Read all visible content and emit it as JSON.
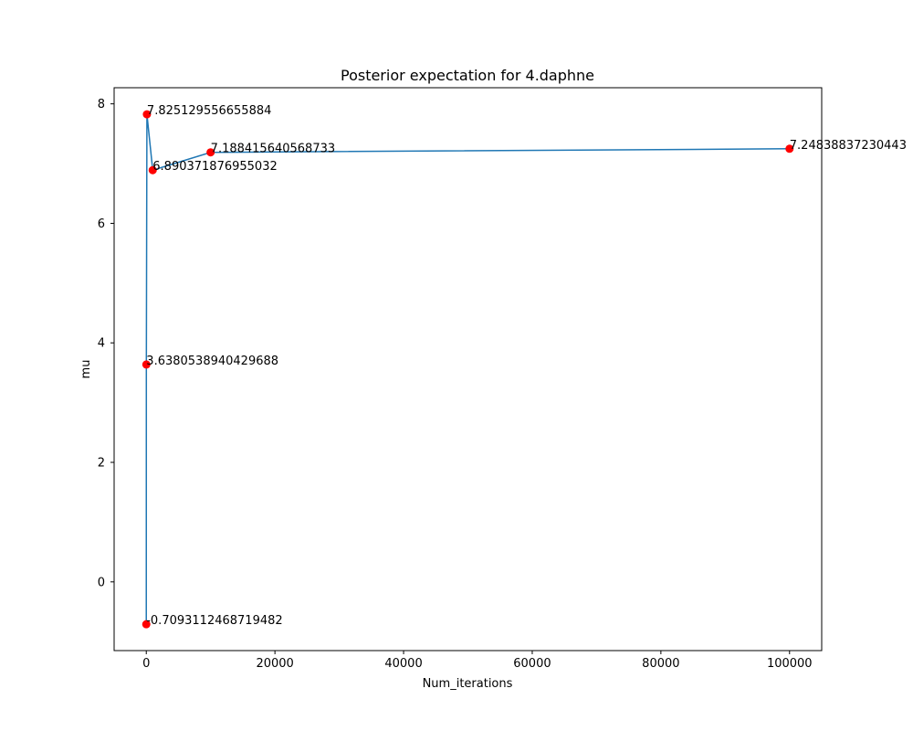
{
  "chart_data": {
    "type": "line",
    "title": "Posterior expectation for 4.daphne",
    "xlabel": "Num_iterations",
    "ylabel": "mu",
    "xlim": [
      -5000,
      105000
    ],
    "ylim": [
      -1.15,
      8.27
    ],
    "xticks": [
      0,
      20000,
      40000,
      60000,
      80000,
      100000
    ],
    "yticks": [
      0,
      2,
      4,
      6,
      8
    ],
    "grid": false,
    "line_color": "#1f77b4",
    "marker_color": "#ff0000",
    "points": [
      {
        "x": 1,
        "y": -0.7093112468719482,
        "label": "-0.7093112468719482"
      },
      {
        "x": 10,
        "y": 3.6380538940429688,
        "label": "3.6380538940429688"
      },
      {
        "x": 100,
        "y": 7.825129556655884,
        "label": "7.825129556655884"
      },
      {
        "x": 1000,
        "y": 6.890371876955032,
        "label": "6.890371876955032"
      },
      {
        "x": 10000,
        "y": 7.188415640568733,
        "label": "7.188415640568733"
      },
      {
        "x": 100000,
        "y": 7.24838837230443,
        "label": "7.24838837230443"
      }
    ]
  }
}
